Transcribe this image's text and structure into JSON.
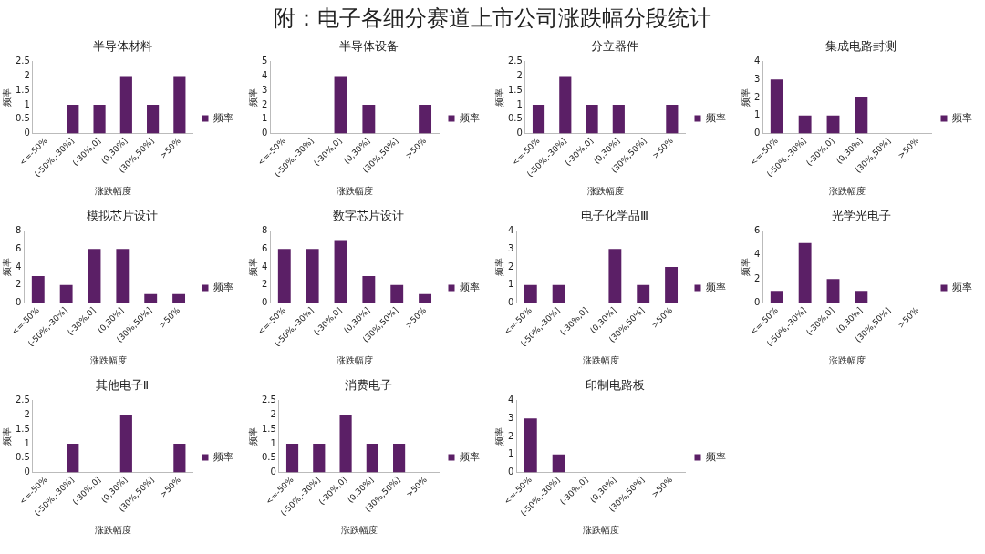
{
  "chart_data": [
    {
      "type": "other",
      "title": "附：电子各细分赛道上市公司涨跌幅分段统计"
    },
    {
      "type": "bar",
      "title": "半导体材料",
      "xlabel": "涨跌幅度",
      "ylabel": "频率",
      "categories": [
        "<=-50%",
        "(-50%,-30%]",
        "(-30%,0]",
        "(0,30%]",
        "(30%,50%]",
        ">50%"
      ],
      "series": [
        {
          "name": "频率",
          "color": "#5b1f66",
          "values": [
            0,
            1,
            1,
            2,
            1,
            2
          ]
        }
      ],
      "ylim": [
        0,
        2.5
      ],
      "yticks": [
        0,
        0.5,
        1,
        1.5,
        2,
        2.5
      ],
      "grid": false,
      "legend": "right"
    },
    {
      "type": "bar",
      "title": "半导体设备",
      "xlabel": "涨跌幅度",
      "ylabel": "频率",
      "categories": [
        "<=-50%",
        "(-50%,-30%]",
        "(-30%,0]",
        "(0,30%]",
        "(30%,50%]",
        ">50%"
      ],
      "series": [
        {
          "name": "频率",
          "color": "#5b1f66",
          "values": [
            0,
            0,
            4,
            2,
            0,
            2
          ]
        }
      ],
      "ylim": [
        0,
        5
      ],
      "yticks": [
        0,
        1,
        2,
        3,
        4,
        5
      ],
      "grid": false,
      "legend": "right"
    },
    {
      "type": "bar",
      "title": "分立器件",
      "xlabel": "涨跌幅度",
      "ylabel": "频率",
      "categories": [
        "<=-50%",
        "(-50%,-30%]",
        "(-30%,0]",
        "(0,30%]",
        "(30%,50%]",
        ">50%"
      ],
      "series": [
        {
          "name": "频率",
          "color": "#5b1f66",
          "values": [
            1,
            2,
            1,
            1,
            0,
            1
          ]
        }
      ],
      "ylim": [
        0,
        2.5
      ],
      "yticks": [
        0,
        0.5,
        1,
        1.5,
        2,
        2.5
      ],
      "grid": false,
      "legend": "right"
    },
    {
      "type": "bar",
      "title": "集成电路封测",
      "xlabel": "涨跌幅度",
      "ylabel": "频率",
      "categories": [
        "<=-50%",
        "(-50%,-30%]",
        "(-30%,0]",
        "(0,30%]",
        "(30%,50%]",
        ">50%"
      ],
      "series": [
        {
          "name": "频率",
          "color": "#5b1f66",
          "values": [
            3,
            1,
            1,
            2,
            0,
            0
          ]
        }
      ],
      "ylim": [
        0,
        4
      ],
      "yticks": [
        0,
        1,
        2,
        3,
        4
      ],
      "grid": false,
      "legend": "right"
    },
    {
      "type": "bar",
      "title": "模拟芯片设计",
      "xlabel": "涨跌幅度",
      "ylabel": "频率",
      "categories": [
        "<=-50%",
        "(-50%,-30%]",
        "(-30%,0]",
        "(0,30%]",
        "(30%,50%]",
        ">50%"
      ],
      "series": [
        {
          "name": "频率",
          "color": "#5b1f66",
          "values": [
            3,
            2,
            6,
            6,
            1,
            1
          ]
        }
      ],
      "ylim": [
        0,
        8
      ],
      "yticks": [
        0,
        2,
        4,
        6,
        8
      ],
      "grid": false,
      "legend": "right"
    },
    {
      "type": "bar",
      "title": "数字芯片设计",
      "xlabel": "涨跌幅度",
      "ylabel": "频率",
      "categories": [
        "<=-50%",
        "(-50%,-30%]",
        "(-30%,0]",
        "(0,30%]",
        "(30%,50%]",
        ">50%"
      ],
      "series": [
        {
          "name": "频率",
          "color": "#5b1f66",
          "values": [
            6,
            6,
            7,
            3,
            2,
            1
          ]
        }
      ],
      "ylim": [
        0,
        8
      ],
      "yticks": [
        0,
        2,
        4,
        6,
        8
      ],
      "grid": false,
      "legend": "right"
    },
    {
      "type": "bar",
      "title": "电子化学品Ⅲ",
      "xlabel": "涨跌幅度",
      "ylabel": "频率",
      "categories": [
        "<=-50%",
        "(-50%,-30%]",
        "(-30%,0]",
        "(0,30%]",
        "(30%,50%]",
        ">50%"
      ],
      "series": [
        {
          "name": "频率",
          "color": "#5b1f66",
          "values": [
            1,
            1,
            0,
            3,
            1,
            2
          ]
        }
      ],
      "ylim": [
        0,
        4
      ],
      "yticks": [
        0,
        1,
        2,
        3,
        4
      ],
      "grid": false,
      "legend": "right"
    },
    {
      "type": "bar",
      "title": "光学光电子",
      "xlabel": "涨跌幅度",
      "ylabel": "频率",
      "categories": [
        "<=-50%",
        "(-50%,-30%]",
        "(-30%,0]",
        "(0,30%]",
        "(30%,50%]",
        ">50%"
      ],
      "series": [
        {
          "name": "频率",
          "color": "#5b1f66",
          "values": [
            1,
            5,
            2,
            1,
            0,
            0
          ]
        }
      ],
      "ylim": [
        0,
        6
      ],
      "yticks": [
        0,
        2,
        4,
        6
      ],
      "grid": false,
      "legend": "right"
    },
    {
      "type": "bar",
      "title": "其他电子Ⅱ",
      "xlabel": "涨跌幅度",
      "ylabel": "频率",
      "categories": [
        "<=-50%",
        "(-50%,-30%]",
        "(-30%,0]",
        "(0,30%]",
        "(30%,50%]",
        ">50%"
      ],
      "series": [
        {
          "name": "频率",
          "color": "#5b1f66",
          "values": [
            0,
            1,
            0,
            2,
            0,
            1
          ]
        }
      ],
      "ylim": [
        0,
        2.5
      ],
      "yticks": [
        0,
        0.5,
        1,
        1.5,
        2,
        2.5
      ],
      "grid": false,
      "legend": "right"
    },
    {
      "type": "bar",
      "title": "消费电子",
      "xlabel": "涨跌幅度",
      "ylabel": "频率",
      "categories": [
        "<=-50%",
        "(-50%,-30%]",
        "(-30%,0]",
        "(0,30%]",
        "(30%,50%]",
        ">50%"
      ],
      "series": [
        {
          "name": "频率",
          "color": "#5b1f66",
          "values": [
            1,
            1,
            2,
            1,
            1,
            0
          ]
        }
      ],
      "ylim": [
        0,
        2.5
      ],
      "yticks": [
        0,
        0.5,
        1,
        1.5,
        2,
        2.5
      ],
      "grid": false,
      "legend": "right"
    },
    {
      "type": "bar",
      "title": "印制电路板",
      "xlabel": "涨跌幅度",
      "ylabel": "频率",
      "categories": [
        "<=-50%",
        "(-50%,-30%]",
        "(-30%,0]",
        "(0,30%]",
        "(30%,50%]",
        ">50%"
      ],
      "series": [
        {
          "name": "频率",
          "color": "#5b1f66",
          "values": [
            3,
            1,
            0,
            0,
            0,
            0
          ]
        }
      ],
      "ylim": [
        0,
        4
      ],
      "yticks": [
        0,
        1,
        2,
        3,
        4
      ],
      "grid": false,
      "legend": "right"
    }
  ]
}
